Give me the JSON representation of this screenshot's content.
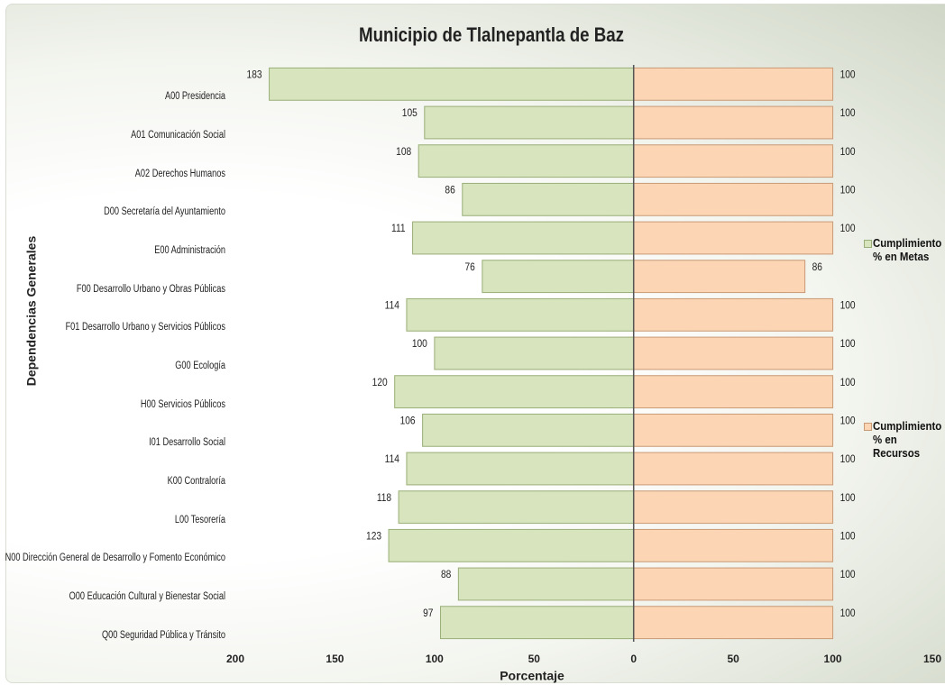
{
  "chart_data": {
    "type": "butterfly_bar",
    "title": "Municipio de  Tlalnepantla de Baz",
    "x_label": "Porcentaje",
    "y_label": "Dependencias Generales",
    "categories": [
      "A00 Presidencia",
      "A01 Comunicación Social",
      "A02 Derechos Humanos",
      "D00 Secretaría del Ayuntamiento",
      "E00 Administración",
      "F00 Desarrollo Urbano y Obras Públicas",
      "F01 Desarrollo Urbano y Servicios Públicos",
      "G00 Ecología",
      "H00 Servicios Públicos",
      "I01 Desarrollo Social",
      "K00 Contraloría",
      "L00 Tesorería",
      "N00 Dirección General de Desarrollo y Fomento Económico",
      "O00 Educación Cultural y Bienestar Social",
      "Q00 Seguridad Pública y Tránsito"
    ],
    "series": [
      {
        "name": "Cumplimiento % en Metas",
        "color": "#d7e4bd",
        "edge": "#9aae78",
        "values": [
          -183,
          -105,
          -108,
          -86,
          -111,
          -76,
          -114,
          -100,
          -120,
          -106,
          -114,
          -118,
          -123,
          -88,
          -97
        ],
        "value_labels": [
          "183",
          "105",
          "108",
          "86",
          "111",
          "76",
          "114",
          "100",
          "120",
          "106",
          "114",
          "118",
          "123",
          "88",
          "97"
        ]
      },
      {
        "name": "Cumplimiento % en Recursos",
        "color": "#fcd5b5",
        "edge": "#c99a76",
        "values": [
          100,
          100,
          100,
          100,
          100,
          86,
          100,
          100,
          100,
          100,
          100,
          100,
          100,
          100,
          100
        ]
      }
    ],
    "xlim": [
      -200,
      150
    ],
    "xticks": [
      {
        "value": -200,
        "label": "200"
      },
      {
        "value": -150,
        "label": "150"
      },
      {
        "value": -100,
        "label": "100"
      },
      {
        "value": -50,
        "label": "50"
      },
      0,
      50,
      100,
      150
    ]
  }
}
